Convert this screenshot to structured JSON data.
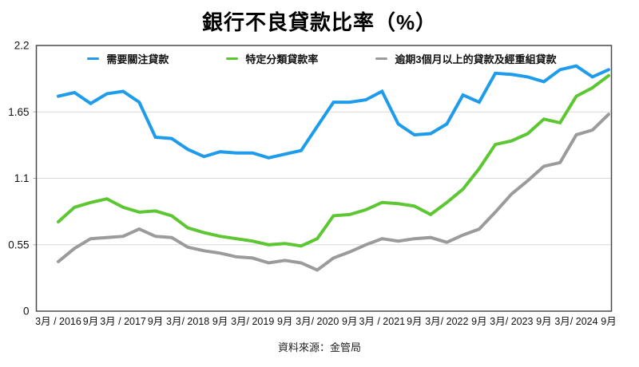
{
  "page": {
    "title": "銀行不良貸款比率（%）",
    "source_note": "資料來源：金管局"
  },
  "chart_data": {
    "type": "line",
    "title": "銀行不良貸款比率（%）",
    "source": "資料來源：金管局",
    "legend_position": "top",
    "grid": "horizontal",
    "x_axis": {
      "tick_labels": [
        "3月 / 2016",
        "9月",
        "3月 / 2017",
        "9月",
        "3月/ 2018",
        "9月",
        "3月/ 2019",
        "9月",
        "3月/ 2020",
        "9月",
        "3月 / 2021",
        "9月",
        "3月/ 2022",
        "9月",
        "3月/ 2023",
        "9月",
        "3月/ 2024",
        "9月"
      ],
      "points_per_tick": 2,
      "periods": [
        "2016年3月",
        "2016年6月",
        "2016年9月",
        "2016年12月",
        "2017年3月",
        "2017年6月",
        "2017年9月",
        "2017年12月",
        "2018年3月",
        "2018年6月",
        "2018年9月",
        "2018年12月",
        "2019年3月",
        "2019年6月",
        "2019年9月",
        "2019年12月",
        "2020年3月",
        "2020年6月",
        "2020年9月",
        "2020年12月",
        "2021年3月",
        "2021年6月",
        "2021年9月",
        "2021年12月",
        "2022年3月",
        "2022年6月",
        "2022年9月",
        "2022年12月",
        "2023年3月",
        "2023年6月",
        "2023年9月",
        "2023年12月",
        "2024年3月",
        "2024年6月",
        "2024年9月"
      ]
    },
    "y_axis": {
      "min": 0,
      "max": 2.2,
      "ticks": [
        0,
        0.55,
        1.1,
        1.65,
        2.2
      ],
      "tick_labels": [
        "0",
        "0.55",
        "1.1",
        "1.65",
        "2.2"
      ]
    },
    "series": [
      {
        "name": "需要關注貸款",
        "color": "#1E9CEB",
        "values": [
          1.78,
          1.81,
          1.72,
          1.8,
          1.82,
          1.73,
          1.44,
          1.43,
          1.34,
          1.28,
          1.32,
          1.31,
          1.31,
          1.27,
          1.3,
          1.33,
          1.53,
          1.73,
          1.73,
          1.75,
          1.82,
          1.55,
          1.46,
          1.47,
          1.55,
          1.79,
          1.73,
          1.97,
          1.96,
          1.94,
          1.9,
          2.0,
          2.03,
          1.94,
          2.0
        ]
      },
      {
        "name": "特定分類貸款率",
        "color": "#5CC732",
        "values": [
          0.74,
          0.86,
          0.9,
          0.93,
          0.86,
          0.82,
          0.83,
          0.79,
          0.69,
          0.65,
          0.62,
          0.6,
          0.58,
          0.55,
          0.56,
          0.54,
          0.6,
          0.79,
          0.8,
          0.84,
          0.9,
          0.89,
          0.87,
          0.8,
          0.9,
          1.01,
          1.18,
          1.38,
          1.41,
          1.47,
          1.59,
          1.56,
          1.78,
          1.85,
          1.95
        ]
      },
      {
        "name": "逾期3個月以上的貸款及經重組貸款",
        "color": "#9B9B9B",
        "values": [
          0.41,
          0.52,
          0.6,
          0.61,
          0.62,
          0.68,
          0.62,
          0.61,
          0.53,
          0.5,
          0.48,
          0.45,
          0.44,
          0.4,
          0.42,
          0.4,
          0.34,
          0.44,
          0.49,
          0.55,
          0.6,
          0.58,
          0.6,
          0.61,
          0.57,
          0.63,
          0.68,
          0.82,
          0.97,
          1.08,
          1.2,
          1.23,
          1.46,
          1.5,
          1.63
        ]
      }
    ],
    "plot_style": {
      "line_width": 4,
      "border_color": "#4a4a4a",
      "gridline_color": "#d9d9d9",
      "tick_color": "#aaaaaa",
      "label_color": "#111111"
    }
  }
}
